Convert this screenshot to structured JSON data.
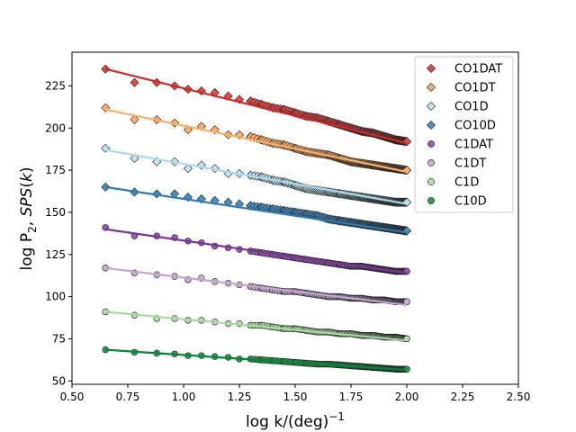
{
  "chart_data": {
    "type": "scatter",
    "title": "",
    "xlabel": "log k/(deg)",
    "xlabel_superscript": "−1",
    "ylabel_parts": [
      "log P",
      "2",
      ", ",
      "SPS",
      "(",
      "k",
      ")"
    ],
    "xlim": [
      0.5,
      2.5
    ],
    "ylim": [
      48,
      245
    ],
    "xticks": [
      0.5,
      0.75,
      1.0,
      1.25,
      1.5,
      1.75,
      2.0,
      2.25,
      2.5
    ],
    "xtick_labels": [
      "0.50",
      "0.75",
      "1.00",
      "1.25",
      "1.50",
      "1.75",
      "2.00",
      "2.25",
      "2.50"
    ],
    "yticks": [
      50,
      75,
      100,
      125,
      150,
      175,
      200,
      225
    ],
    "ytick_labels": [
      "50",
      "75",
      "100",
      "125",
      "150",
      "175",
      "200",
      "225"
    ],
    "legend_position": "top-right",
    "x_range": [
      0.65,
      2.0
    ],
    "sampled_x": [
      0.65,
      0.78,
      0.88,
      0.96,
      1.02,
      1.08,
      1.14,
      1.2,
      1.25,
      1.3,
      1.35,
      1.4,
      1.45,
      1.5,
      1.55,
      1.6,
      1.65,
      1.7,
      1.75,
      1.8,
      1.85,
      1.9,
      1.95,
      2.0
    ],
    "series": [
      {
        "name": "CO1DAT",
        "marker": "diamond",
        "color": "#e34a44",
        "line_color": "#d62728",
        "fit_start": 235,
        "fit_end": 191,
        "y": [
          235,
          227,
          227,
          225,
          223,
          222,
          221,
          219,
          217,
          216,
          214,
          212,
          211,
          209,
          207,
          206,
          204,
          202,
          200,
          198,
          197,
          195,
          193,
          192
        ]
      },
      {
        "name": "CO1DT",
        "marker": "diamond",
        "color": "#fdae6b",
        "line_color": "#fdae61",
        "fit_start": 211,
        "fit_end": 174,
        "y": [
          212,
          205,
          205,
          203,
          199,
          201,
          199,
          196,
          196,
          195,
          193,
          191,
          190,
          188,
          186,
          185,
          184,
          182,
          180,
          179,
          178,
          177,
          176,
          175
        ]
      },
      {
        "name": "CO1D",
        "marker": "diamond",
        "color": "#c6e3f2",
        "line_color": "#a6dbee",
        "fit_start": 187,
        "fit_end": 155,
        "y": [
          188,
          182,
          180,
          180,
          176,
          178,
          176,
          173,
          173,
          172,
          171,
          169,
          168,
          166,
          164,
          163,
          162,
          161,
          160,
          159,
          158,
          157,
          156,
          156
        ]
      },
      {
        "name": "CO10D",
        "marker": "diamond",
        "color": "#4a8fc4",
        "line_color": "#2c7bb6",
        "fit_start": 165,
        "fit_end": 138,
        "y": [
          165,
          162,
          161,
          161,
          159,
          158,
          157,
          156,
          155,
          154,
          153,
          152,
          151,
          150,
          149,
          148,
          146,
          145,
          144,
          143,
          142,
          141,
          140,
          139
        ]
      },
      {
        "name": "C1DAT",
        "marker": "circle",
        "color": "#9b59b6",
        "line_color": "#7b3294",
        "fit_start": 140,
        "fit_end": 114,
        "y": [
          141,
          136,
          136,
          135,
          133,
          132,
          130,
          129,
          128,
          127,
          126,
          125,
          124,
          123,
          122,
          121,
          120,
          119,
          118,
          118,
          117,
          116,
          115,
          115
        ]
      },
      {
        "name": "C1DT",
        "marker": "circle",
        "color": "#c9add3",
        "line_color": "#c2a5cf",
        "fit_start": 117,
        "fit_end": 95,
        "y": [
          117,
          114,
          113,
          112,
          110,
          111,
          109,
          108,
          107,
          106,
          105,
          104,
          103,
          103,
          102,
          101,
          100,
          100,
          99,
          99,
          98,
          98,
          97,
          97
        ]
      },
      {
        "name": "C1D",
        "marker": "circle",
        "color": "#b3deaa",
        "line_color": "#a6dba0",
        "fit_start": 91,
        "fit_end": 74,
        "y": [
          91,
          89,
          87,
          87,
          86,
          86,
          85,
          84,
          84,
          83,
          83,
          82,
          81,
          81,
          80,
          79,
          79,
          78,
          78,
          77,
          77,
          76,
          76,
          75
        ]
      },
      {
        "name": "C10D",
        "marker": "circle",
        "color": "#2e9c52",
        "line_color": "#008837",
        "fit_start": 68.5,
        "fit_end": 56.5,
        "y": [
          68.5,
          67,
          66.5,
          66,
          65,
          65,
          64.5,
          64,
          63,
          63,
          62.5,
          62,
          61.5,
          61,
          60.5,
          60,
          60,
          59.5,
          59,
          58.5,
          58,
          57.5,
          57,
          57
        ]
      }
    ]
  }
}
